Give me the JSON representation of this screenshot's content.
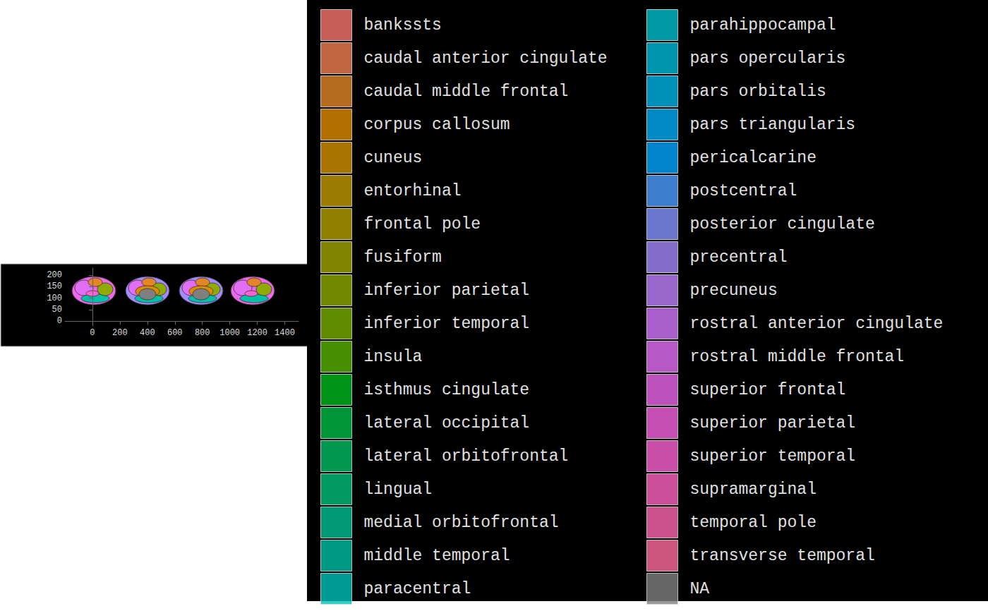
{
  "chart_data": {
    "type": "map",
    "xlim": [
      -200,
      1500
    ],
    "xticks": [
      0,
      200,
      400,
      600,
      800,
      1000,
      1200,
      1400
    ],
    "ylim": [
      -20,
      230
    ],
    "yticks": [
      0,
      50,
      100,
      150,
      200
    ],
    "grid": false,
    "legend": "right",
    "series": [
      {
        "name": "bankssts",
        "color": "#F8766D"
      },
      {
        "name": "caudal anterior cingulate",
        "color": "#F07F50"
      },
      {
        "name": "caudal middle frontal",
        "color": "#E58626"
      },
      {
        "name": "corpus callosum",
        "color": "#E08B00"
      },
      {
        "name": "cuneus",
        "color": "#D39200"
      },
      {
        "name": "entorhinal",
        "color": "#C49A00"
      },
      {
        "name": "frontal pole",
        "color": "#B4A000"
      },
      {
        "name": "fusiform",
        "color": "#A3A500"
      },
      {
        "name": "inferior parietal",
        "color": "#8FAA00"
      },
      {
        "name": "inferior temporal",
        "color": "#77AF00"
      },
      {
        "name": "insula",
        "color": "#58B300"
      },
      {
        "name": "isthmus cingulate",
        "color": "#00B81A"
      },
      {
        "name": "lateral occipital",
        "color": "#00BC45"
      },
      {
        "name": "lateral orbitofrontal",
        "color": "#00BE63"
      },
      {
        "name": "lingual",
        "color": "#00C07B"
      },
      {
        "name": "medial orbitofrontal",
        "color": "#00C191"
      },
      {
        "name": "middle temporal",
        "color": "#00C1A5"
      },
      {
        "name": "paracentral",
        "color": "#00C0B8"
      },
      {
        "name": "parahippocampal",
        "color": "#00BECA"
      },
      {
        "name": "pars opercularis",
        "color": "#00BADA"
      },
      {
        "name": "pars orbitalis",
        "color": "#00B5E8"
      },
      {
        "name": "pars triangularis",
        "color": "#00AEF5"
      },
      {
        "name": "pericalcarine",
        "color": "#00A6FF"
      },
      {
        "name": "postcentral",
        "color": "#4B9DFF"
      },
      {
        "name": "posterior cingulate",
        "color": "#8494FF"
      },
      {
        "name": "precentral",
        "color": "#A58AFF"
      },
      {
        "name": "precuneus",
        "color": "#BF80FF"
      },
      {
        "name": "rostral anterior cingulate",
        "color": "#D376FF"
      },
      {
        "name": "rostral middle frontal",
        "color": "#E36EF6"
      },
      {
        "name": "superior frontal",
        "color": "#EE67EC"
      },
      {
        "name": "superior parietal",
        "color": "#F763E0"
      },
      {
        "name": "superior temporal",
        "color": "#FD61D2"
      },
      {
        "name": "supramarginal",
        "color": "#FF62C2"
      },
      {
        "name": "temporal pole",
        "color": "#FF66B0"
      },
      {
        "name": "transverse temporal",
        "color": "#FF6C9C"
      },
      {
        "name": "NA",
        "color": "#7F7F7F"
      }
    ]
  }
}
